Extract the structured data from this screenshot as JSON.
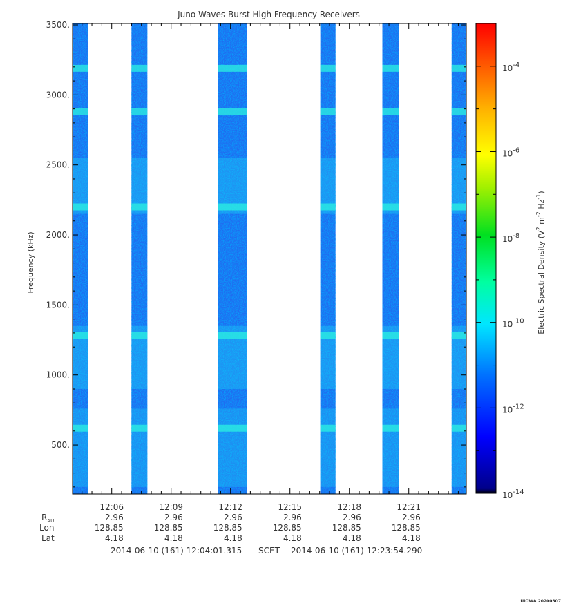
{
  "chart_data": {
    "type": "heatmap",
    "title": "Juno Waves Burst High Frequency Receivers",
    "ylabel": "Frequency (kHz)",
    "ylim": [
      150,
      3510
    ],
    "y_ticks": [
      500,
      1000,
      1500,
      2000,
      2500,
      3000,
      3500
    ],
    "y_tick_labels": [
      "500.",
      "1000.",
      "1500.",
      "2000.",
      "2500.",
      "3000.",
      "3500."
    ],
    "x_range_minutes": [
      "12:04:01.315",
      "12:23:54.290"
    ],
    "x_tick_labels": [
      "12:06",
      "12:09",
      "12:12",
      "12:15",
      "12:18",
      "12:21"
    ],
    "x_tick_times": [
      "12:06",
      "12:09",
      "12:12",
      "12:15",
      "12:18",
      "12:21"
    ],
    "bursts": [
      {
        "start": "12:04:01",
        "end": "12:04:48"
      },
      {
        "start": "12:07:00",
        "end": "12:07:48"
      },
      {
        "start": "12:11:22",
        "end": "12:12:50"
      },
      {
        "start": "12:16:32",
        "end": "12:17:18"
      },
      {
        "start": "12:19:40",
        "end": "12:20:30"
      },
      {
        "start": "12:23:10",
        "end": "12:23:54"
      }
    ],
    "bright_bands_khz": [
      620,
      1280,
      2200,
      2880,
      3190
    ],
    "colorbar": {
      "label_prefix": "Electric Spectral Density (V",
      "label_sup1": "2",
      "label_mid": " m",
      "label_sup2": "-2",
      "label_mid2": " Hz",
      "label_sup3": "-1",
      "label_suffix": ")",
      "log_range": [
        -14,
        -3
      ],
      "ticks": [
        {
          "base": "10",
          "exp": "-4"
        },
        {
          "base": "10",
          "exp": "-6"
        },
        {
          "base": "10",
          "exp": "-8"
        },
        {
          "base": "10",
          "exp": "-10"
        },
        {
          "base": "10",
          "exp": "-12"
        },
        {
          "base": "10",
          "exp": "-14"
        }
      ],
      "tick_values": [
        -4,
        -6,
        -8,
        -10,
        -12,
        -14
      ]
    },
    "ephemeris": {
      "labels": {
        "rau_main": "R",
        "rau_sub": "AU",
        "lon": "Lon",
        "lat": "Lat"
      },
      "rau": [
        "2.96",
        "2.96",
        "2.96",
        "2.96",
        "2.96",
        "2.96"
      ],
      "lon": [
        "128.85",
        "128.85",
        "128.85",
        "128.85",
        "128.85",
        "128.85"
      ],
      "lat": [
        "4.18",
        "4.18",
        "4.18",
        "4.18",
        "4.18",
        "4.18"
      ]
    },
    "time_range": {
      "start": "2014-06-10 (161) 12:04:01.315",
      "scet": "SCET",
      "end": "2014-06-10 (161) 12:23:54.290"
    },
    "footer": "UIOWA 20200307"
  }
}
